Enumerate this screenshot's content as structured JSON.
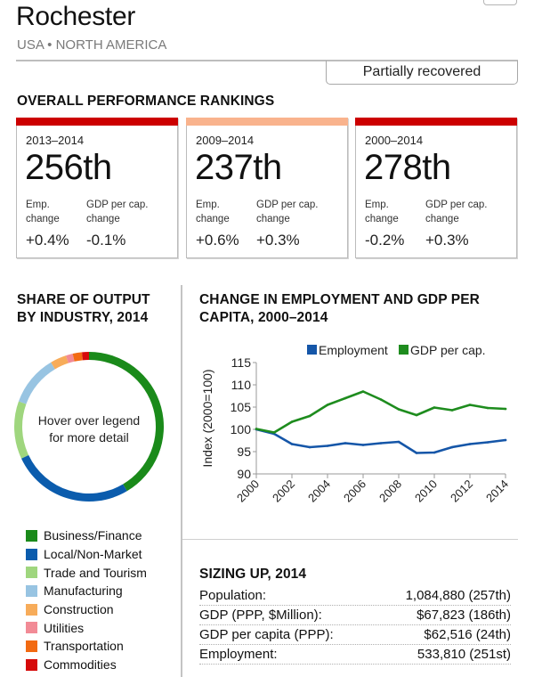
{
  "header": {
    "city": "Rochester",
    "region": "USA • NORTH AMERICA",
    "status": "Partially recovered"
  },
  "rankings": {
    "heading": "OVERALL PERFORMANCE RANKINGS",
    "emp_label_1": "Emp.",
    "emp_label_2": "change",
    "gdp_label_1": "GDP per cap.",
    "gdp_label_2": "change",
    "cards": [
      {
        "period": "2013–2014",
        "rank": "256th",
        "emp_change": "+0.4%",
        "gdp_change": "-0.1%",
        "bar_color": "#cc0000"
      },
      {
        "period": "2009–2014",
        "rank": "237th",
        "emp_change": "+0.6%",
        "gdp_change": "+0.3%",
        "bar_color": "#f9b38d"
      },
      {
        "period": "2000–2014",
        "rank": "278th",
        "emp_change": "-0.2%",
        "gdp_change": "+0.3%",
        "bar_color": "#cc0000"
      }
    ]
  },
  "share": {
    "heading_line1": "SHARE OF OUTPUT",
    "heading_line2": "BY INDUSTRY, 2014",
    "center_line1": "Hover over legend",
    "center_line2": "for more detail"
  },
  "change": {
    "heading_line1": "CHANGE IN EMPLOYMENT AND GDP PER",
    "heading_line2": "CAPITA, 2000–2014"
  },
  "sizing": {
    "heading": "SIZING UP, 2014",
    "rows": [
      {
        "label": "Population:",
        "value": "1,084,880 (257th)"
      },
      {
        "label": "GDP (PPP, $Million):",
        "value": "$67,823 (186th)"
      },
      {
        "label": "GDP per capita (PPP):",
        "value": "$62,516 (24th)"
      },
      {
        "label": "Employment:",
        "value": "533,810 (251st)"
      }
    ]
  },
  "chart_data": [
    {
      "type": "pie",
      "title": "SHARE OF OUTPUT BY INDUSTRY, 2014",
      "donut": true,
      "start": "top",
      "direction": "clockwise",
      "categories": [
        "Business/Finance",
        "Local/Non-Market",
        "Trade and Tourism",
        "Manufacturing",
        "Construction",
        "Utilities",
        "Transportation",
        "Commodities"
      ],
      "values": [
        41.5,
        26.5,
        12.5,
        11,
        3.5,
        1.5,
        2,
        1.5
      ],
      "colors": [
        "#1a8a1a",
        "#0b5cad",
        "#9fd67e",
        "#98c4e2",
        "#f7ac5a",
        "#f28b96",
        "#f26a12",
        "#d60a0a"
      ],
      "legend": "bottom"
    },
    {
      "type": "line",
      "title": "CHANGE IN EMPLOYMENT AND GDP PER CAPITA, 2000–2014",
      "xlabel": "",
      "ylabel": "Index (2000=100)",
      "x": [
        2000,
        2001,
        2002,
        2003,
        2004,
        2005,
        2006,
        2007,
        2008,
        2009,
        2010,
        2011,
        2012,
        2013,
        2014
      ],
      "xticks": [
        "2000",
        "2002",
        "2004",
        "2006",
        "2008",
        "2010",
        "2012",
        "2014"
      ],
      "xlim": [
        2000,
        2014
      ],
      "ylim": [
        90,
        115
      ],
      "yticks": [
        "90",
        "95",
        "100",
        "105",
        "110",
        "115"
      ],
      "grid": false,
      "legend": "top",
      "series": [
        {
          "name": "Employment",
          "color": "#1556a8",
          "values": [
            100,
            99,
            96.7,
            96,
            96.3,
            96.9,
            96.5,
            96.9,
            97.2,
            94.7,
            94.8,
            96,
            96.7,
            97.1,
            97.6
          ]
        },
        {
          "name": "GDP per cap.",
          "color": "#1e8c1e",
          "values": [
            100.1,
            99.3,
            101.7,
            103,
            105.5,
            107,
            108.5,
            106.7,
            104.5,
            103.2,
            104.9,
            104.3,
            105.5,
            104.8,
            104.6
          ]
        }
      ]
    }
  ]
}
